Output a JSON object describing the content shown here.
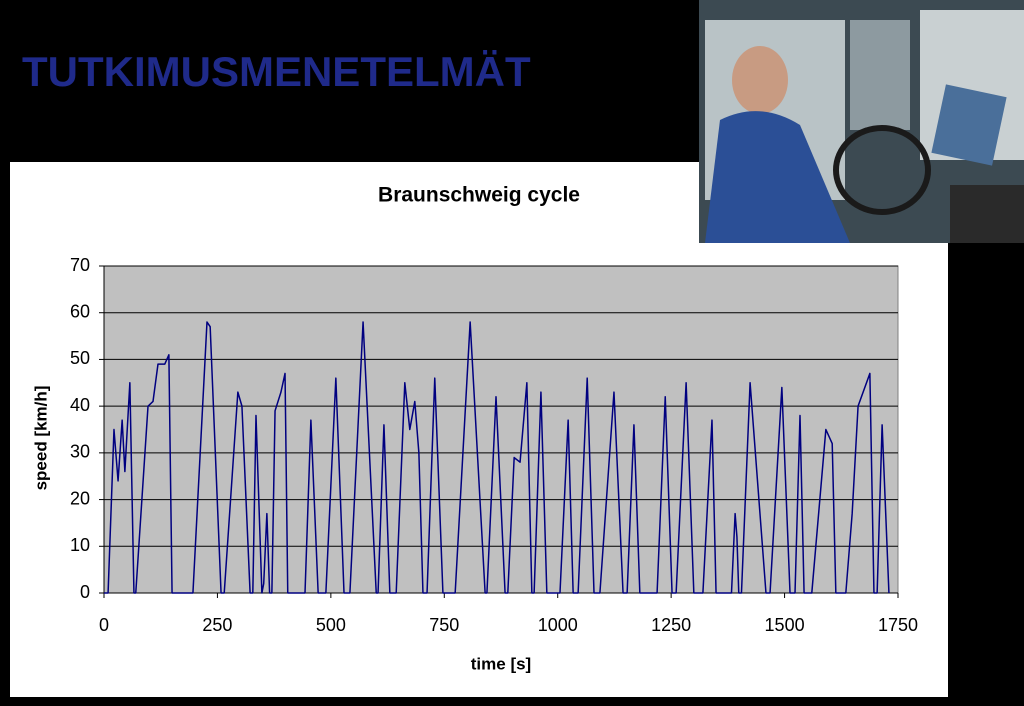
{
  "slide_title": "TUTKIMUSMENETELMÄT",
  "chart_data": {
    "type": "line",
    "title": "Braunschweig cycle",
    "x_label": "time [s]",
    "y_label": "speed [km/h]",
    "x": [
      0,
      9,
      22,
      31,
      40,
      46,
      57,
      66,
      70,
      97,
      108,
      119,
      134,
      143,
      150,
      196,
      227,
      234,
      258,
      265,
      295,
      304,
      322,
      328,
      335,
      348,
      352,
      359,
      365,
      370,
      377,
      390,
      399,
      405,
      443,
      456,
      472,
      489,
      511,
      529,
      542,
      571,
      600,
      604,
      617,
      630,
      644,
      663,
      674,
      685,
      694,
      703,
      712,
      729,
      747,
      774,
      807,
      840,
      844,
      864,
      884,
      890,
      904,
      917,
      932,
      943,
      948,
      963,
      976,
      1005,
      1023,
      1034,
      1045,
      1065,
      1080,
      1093,
      1124,
      1144,
      1153,
      1168,
      1181,
      1219,
      1237,
      1252,
      1261,
      1283,
      1300,
      1320,
      1340,
      1349,
      1383,
      1391,
      1395,
      1399,
      1405,
      1424,
      1459,
      1468,
      1494,
      1512,
      1523,
      1534,
      1543,
      1560,
      1591,
      1605,
      1613,
      1635,
      1649,
      1662,
      1688,
      1697,
      1704,
      1715,
      1730
    ],
    "values": [
      0,
      0,
      35,
      24,
      37,
      26,
      45,
      0,
      0,
      40,
      41,
      49,
      49,
      51,
      0,
      0,
      58,
      57,
      0,
      0,
      43,
      40,
      0,
      0,
      38,
      0,
      2,
      17,
      0,
      0,
      39,
      43,
      47,
      0,
      0,
      37,
      0,
      0,
      46,
      0,
      0,
      58,
      0,
      0,
      36,
      0,
      0,
      45,
      35,
      41,
      30,
      0,
      0,
      46,
      0,
      0,
      58,
      0,
      0,
      42,
      0,
      0,
      29,
      28,
      45,
      0,
      0,
      43,
      0,
      0,
      37,
      0,
      0,
      46,
      0,
      0,
      43,
      0,
      0,
      36,
      0,
      0,
      42,
      0,
      0,
      45,
      0,
      0,
      37,
      0,
      0,
      17,
      12,
      0,
      0,
      45,
      0,
      0,
      44,
      0,
      0,
      38,
      0,
      0,
      35,
      32,
      0,
      0,
      17,
      40,
      47,
      0,
      0,
      36,
      0
    ],
    "color": "#000080",
    "xlim": [
      0,
      1750
    ],
    "xticks": [
      0,
      250,
      500,
      750,
      1000,
      1250,
      1500,
      1750
    ],
    "ylim": [
      0,
      70
    ],
    "yticks": [
      0,
      10,
      20,
      30,
      40,
      50,
      60,
      70
    ],
    "grid": true
  }
}
